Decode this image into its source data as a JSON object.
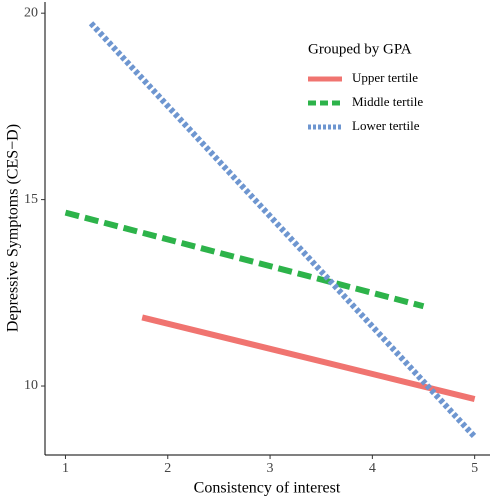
{
  "chart_data": {
    "type": "line",
    "x_label": "Consistency of interest",
    "y_label": "Depressive Symptoms (CES−D)",
    "legend_title": "Grouped by GPA",
    "legend": "upper right",
    "xlim": [
      0.8,
      5.15
    ],
    "xticks": [
      1,
      2,
      3,
      4,
      5
    ],
    "ylim": [
      8.15,
      20.3
    ],
    "yticks": [
      10,
      15,
      20
    ],
    "grid": false,
    "series": [
      {
        "name": "Upper tertile",
        "color": "#f07470",
        "dash": "solid",
        "x": [
          1.75,
          5
        ],
        "values": [
          11.84,
          9.65
        ]
      },
      {
        "name": "Middle tertile",
        "color": "#2db34a",
        "dash": "dashed",
        "x": [
          1,
          4.5
        ],
        "values": [
          14.65,
          12.14
        ]
      },
      {
        "name": "Lower tertile",
        "color": "#6e96d0",
        "dash": "dotted",
        "x": [
          1.25,
          5
        ],
        "values": [
          19.73,
          8.64
        ]
      }
    ]
  }
}
